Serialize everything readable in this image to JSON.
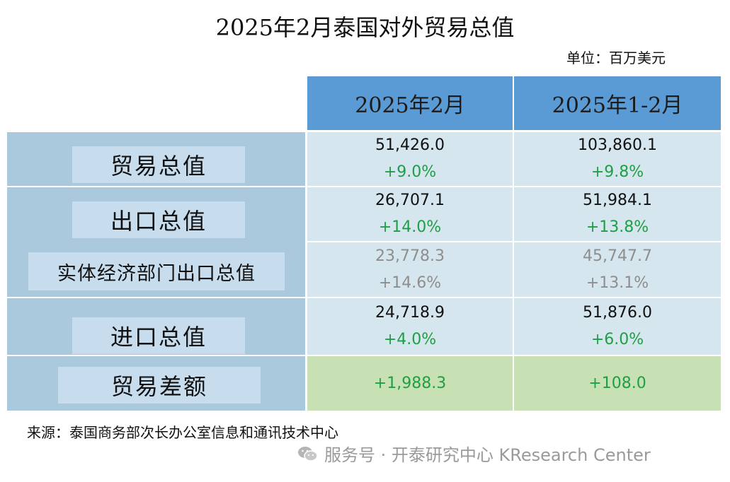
{
  "title": "2025年2月泰国对外贸易总值",
  "unit": "单位：百万美元",
  "columns": [
    "2025年2月",
    "2025年1-2月"
  ],
  "rows": [
    {
      "label": "贸易总值",
      "feb_value": "51,426.0",
      "feb_pct": "+9.0%",
      "jf_value": "103,860.1",
      "jf_pct": "+9.8%"
    },
    {
      "label": "出口总值",
      "feb_value": "26,707.1",
      "feb_pct": "+14.0%",
      "jf_value": "51,984.1",
      "jf_pct": "+13.8%"
    },
    {
      "label": "实体经济部门出口总值",
      "feb_value": "23,778.3",
      "feb_pct": "+14.6%",
      "jf_value": "45,747.7",
      "jf_pct": "+13.1%"
    },
    {
      "label": "进口总值",
      "feb_value": "24,718.9",
      "feb_pct": "+4.0%",
      "jf_value": "51,876.0",
      "jf_pct": "+6.0%"
    },
    {
      "label": "贸易差额",
      "feb_pct": "+1,988.3",
      "jf_pct": "+108.0"
    }
  ],
  "source": "来源：泰国商务部次长办公室信息和通讯技术中心",
  "watermark": "服务号 · 开泰研究中心 KResearch Center",
  "colors": {
    "header": "#5b9bd5",
    "label_col": "#aac9dd",
    "label_box": "#c7dced",
    "cell": "#d5e6ee",
    "balance_cell": "#c7e0b4",
    "positive": "#1f9f45",
    "muted": "#8e8e8e"
  }
}
